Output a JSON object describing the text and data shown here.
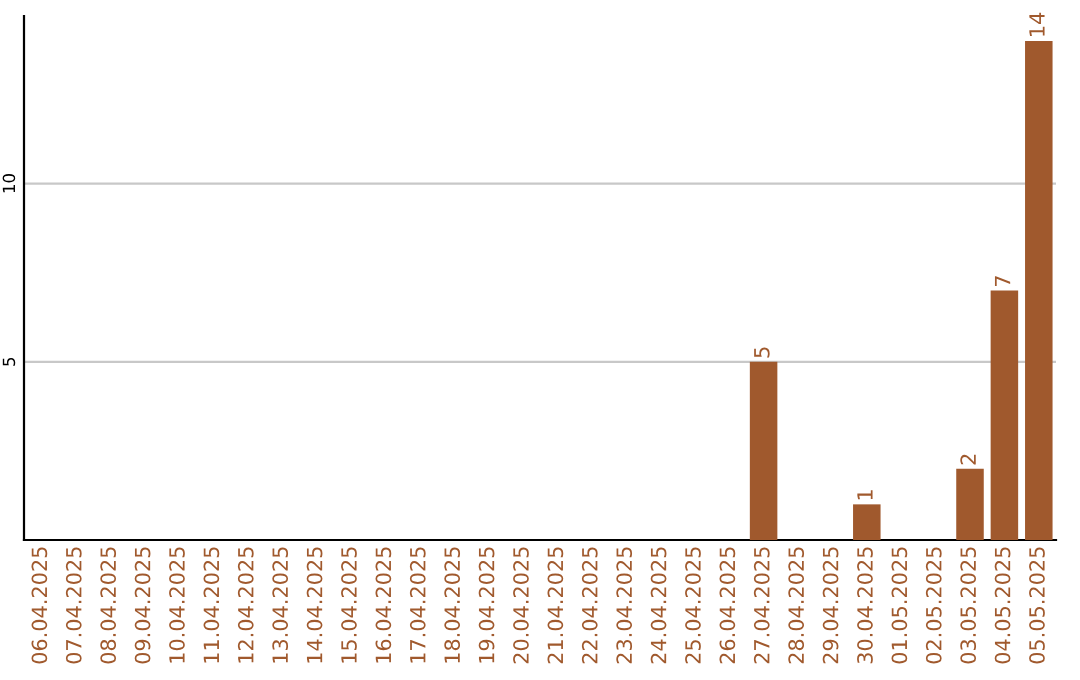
{
  "chart_data": {
    "type": "bar",
    "categories": [
      "06.04.2025",
      "07.04.2025",
      "08.04.2025",
      "09.04.2025",
      "10.04.2025",
      "11.04.2025",
      "12.04.2025",
      "13.04.2025",
      "14.04.2025",
      "15.04.2025",
      "16.04.2025",
      "17.04.2025",
      "18.04.2025",
      "19.04.2025",
      "20.04.2025",
      "21.04.2025",
      "22.04.2025",
      "23.04.2025",
      "24.04.2025",
      "25.04.2025",
      "26.04.2025",
      "27.04.2025",
      "28.04.2025",
      "29.04.2025",
      "30.04.2025",
      "01.05.2025",
      "02.05.2025",
      "03.05.2025",
      "04.05.2025",
      "05.05.2025"
    ],
    "values": [
      0,
      0,
      0,
      0,
      0,
      0,
      0,
      0,
      0,
      0,
      0,
      0,
      0,
      0,
      0,
      0,
      0,
      0,
      0,
      0,
      0,
      5,
      0,
      0,
      1,
      0,
      0,
      2,
      7,
      14
    ],
    "value_labels": [
      null,
      null,
      null,
      null,
      null,
      null,
      null,
      null,
      null,
      null,
      null,
      null,
      null,
      null,
      null,
      null,
      null,
      null,
      null,
      null,
      null,
      "5",
      null,
      null,
      "1",
      null,
      null,
      "2",
      "7",
      "14"
    ],
    "color": "#a0592d",
    "ylim": [
      0,
      14.7
    ],
    "yticks": [
      5,
      10
    ],
    "grid": "y"
  }
}
